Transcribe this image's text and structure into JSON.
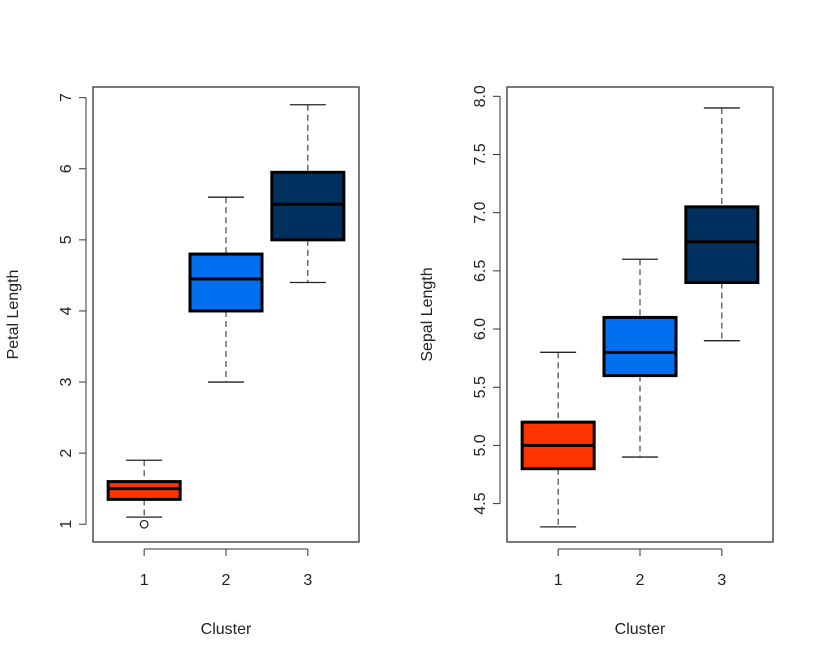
{
  "chart_data": [
    {
      "type": "boxplot",
      "xlabel": "Cluster",
      "ylabel": "Petal Length",
      "categories": [
        "1",
        "2",
        "3"
      ],
      "ylim": [
        0.75,
        7.15
      ],
      "yticks": [
        "1",
        "2",
        "3",
        "4",
        "5",
        "6",
        "7"
      ],
      "boxes": [
        {
          "category": "1",
          "min": 1.1,
          "q1": 1.35,
          "median": 1.5,
          "q3": 1.6,
          "max": 1.9,
          "outliers": [
            1.0
          ],
          "color": "#FF3300"
        },
        {
          "category": "2",
          "min": 3.0,
          "q1": 4.0,
          "median": 4.45,
          "q3": 4.8,
          "max": 5.6,
          "outliers": [],
          "color": "#0070F0"
        },
        {
          "category": "3",
          "min": 4.4,
          "q1": 5.0,
          "median": 5.5,
          "q3": 5.95,
          "max": 6.9,
          "outliers": [],
          "color": "#00305E"
        }
      ]
    },
    {
      "type": "boxplot",
      "xlabel": "Cluster",
      "ylabel": "Sepal Length",
      "categories": [
        "1",
        "2",
        "3"
      ],
      "ylim": [
        4.17,
        8.08
      ],
      "yticks": [
        "4.5",
        "5.0",
        "5.5",
        "6.0",
        "6.5",
        "7.0",
        "7.5",
        "8.0"
      ],
      "boxes": [
        {
          "category": "1",
          "min": 4.3,
          "q1": 4.8,
          "median": 5.0,
          "q3": 5.2,
          "max": 5.8,
          "outliers": [],
          "color": "#FF3300"
        },
        {
          "category": "2",
          "min": 4.9,
          "q1": 5.6,
          "median": 5.8,
          "q3": 6.1,
          "max": 6.6,
          "outliers": [],
          "color": "#0070F0"
        },
        {
          "category": "3",
          "min": 5.9,
          "q1": 6.4,
          "median": 6.75,
          "q3": 7.05,
          "max": 7.9,
          "outliers": [],
          "color": "#00305E"
        }
      ]
    }
  ]
}
